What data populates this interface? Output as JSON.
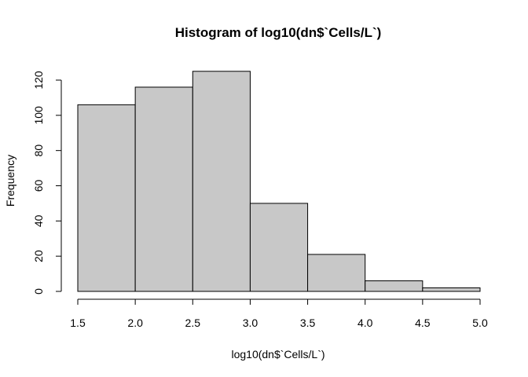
{
  "chart_data": {
    "type": "bar",
    "title": "Histogram of log10(dn$`Cells/L`)",
    "xlabel": "log10(dn$`Cells/L`)",
    "ylabel": "Frequency",
    "bins": [
      {
        "start": 1.5,
        "end": 2.0,
        "value": 106
      },
      {
        "start": 2.0,
        "end": 2.5,
        "value": 116
      },
      {
        "start": 2.5,
        "end": 3.0,
        "value": 125
      },
      {
        "start": 3.0,
        "end": 3.5,
        "value": 50
      },
      {
        "start": 3.5,
        "end": 4.0,
        "value": 21
      },
      {
        "start": 4.0,
        "end": 4.5,
        "value": 6
      },
      {
        "start": 4.5,
        "end": 5.0,
        "value": 2
      }
    ],
    "xticks": [
      "1.5",
      "2.0",
      "2.5",
      "3.0",
      "3.5",
      "4.0",
      "4.5",
      "5.0"
    ],
    "yticks": [
      "0",
      "20",
      "40",
      "60",
      "80",
      "100",
      "120"
    ],
    "xlim": [
      1.5,
      5.0
    ],
    "ylim": [
      0,
      120
    ],
    "bar_color": "#c8c8c8",
    "grid": false
  }
}
